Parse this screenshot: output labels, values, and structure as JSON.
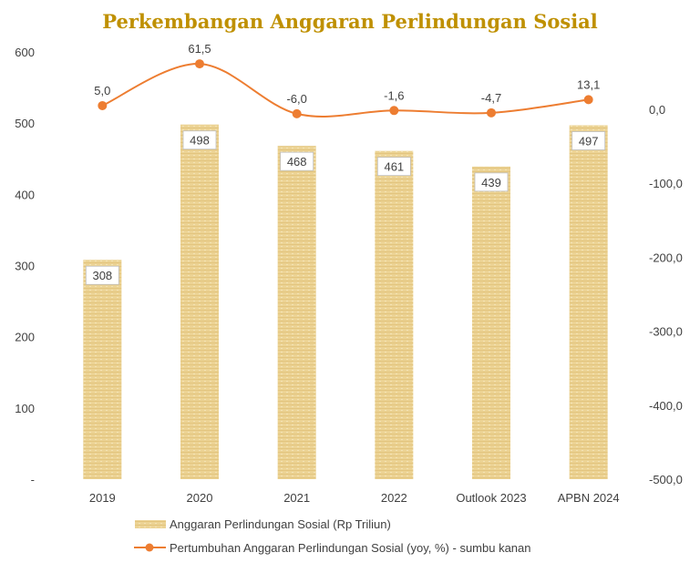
{
  "chart_data": {
    "type": "bar+line",
    "title": "Perkembangan Anggaran Perlindungan Sosial",
    "categories": [
      "2019",
      "2020",
      "2021",
      "2022",
      "Outlook 2023",
      "APBN 2024"
    ],
    "series": [
      {
        "name": "Anggaran Perlindungan Sosial (Rp Triliun)",
        "type": "bar",
        "axis": "left",
        "values": [
          308,
          498,
          468,
          461,
          439,
          497
        ],
        "labels": [
          "308",
          "498",
          "468",
          "461",
          "439",
          "497"
        ]
      },
      {
        "name": "Pertumbuhan Anggaran Perlindungan Sosial (yoy, %) - sumbu kanan",
        "type": "line",
        "axis": "right",
        "values": [
          5.0,
          61.5,
          -6.0,
          -1.6,
          -4.7,
          13.1
        ],
        "labels": [
          "5,0",
          "61,5",
          "-6,0",
          "-1,6",
          "-4,7",
          "13,1"
        ]
      }
    ],
    "ylim_left": [
      0,
      600
    ],
    "left_ticks": [
      "-",
      "100",
      "200",
      "300",
      "400",
      "500",
      "600"
    ],
    "ylim_right": [
      -500,
      77.6
    ],
    "right_ticks": [
      "-500,0",
      "-400,0",
      "-300,0",
      "-200,0",
      "-100,0",
      "0,0"
    ],
    "grid": false,
    "legend_position": "bottom",
    "colors": {
      "title": "#bf9000",
      "bar": "#ecd394",
      "line": "#ed7d31",
      "text": "#404040"
    }
  }
}
